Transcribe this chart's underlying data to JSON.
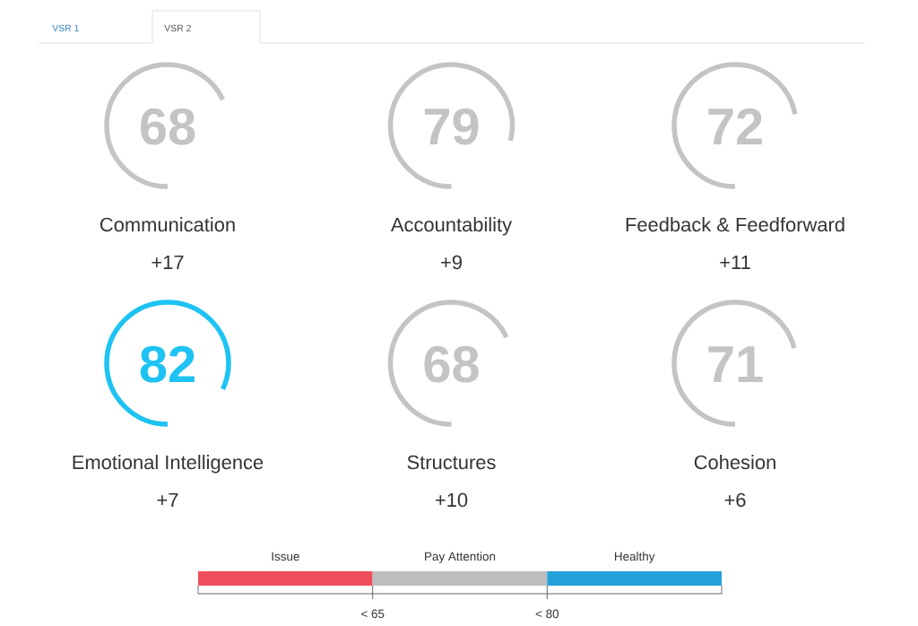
{
  "chart_data": [
    {
      "type": "other",
      "annotations": [
        "VSR 1",
        "VSR 2"
      ],
      "categories": [
        "Communication",
        "Accountability",
        "Feedback & Feedforward",
        "Emotional Intelligence",
        "Structures",
        "Cohesion"
      ],
      "series": [
        {
          "values": [
            68,
            79,
            72,
            82,
            68,
            71
          ],
          "colors": [
            "#c4c4c4",
            "#c4c4c4",
            "#c4c4c4",
            "#1ec3f3",
            "#c4c4c4",
            "#c4c4c4"
          ]
        },
        {
          "values": [
            17,
            9,
            11,
            7,
            10,
            6
          ],
          "value_labels": [
            "+17",
            "+9",
            "+11",
            "+7",
            "+10",
            "+6"
          ]
        }
      ],
      "data_labels": true
    },
    {
      "type": "other",
      "categories": [
        "Issue",
        "Pay Attention",
        "Healthy"
      ],
      "colors": [
        "#ef4f5b",
        "#bcbdbf",
        "#25a1da"
      ],
      "annotations": [
        "< 65",
        "< 80"
      ]
    }
  ]
}
